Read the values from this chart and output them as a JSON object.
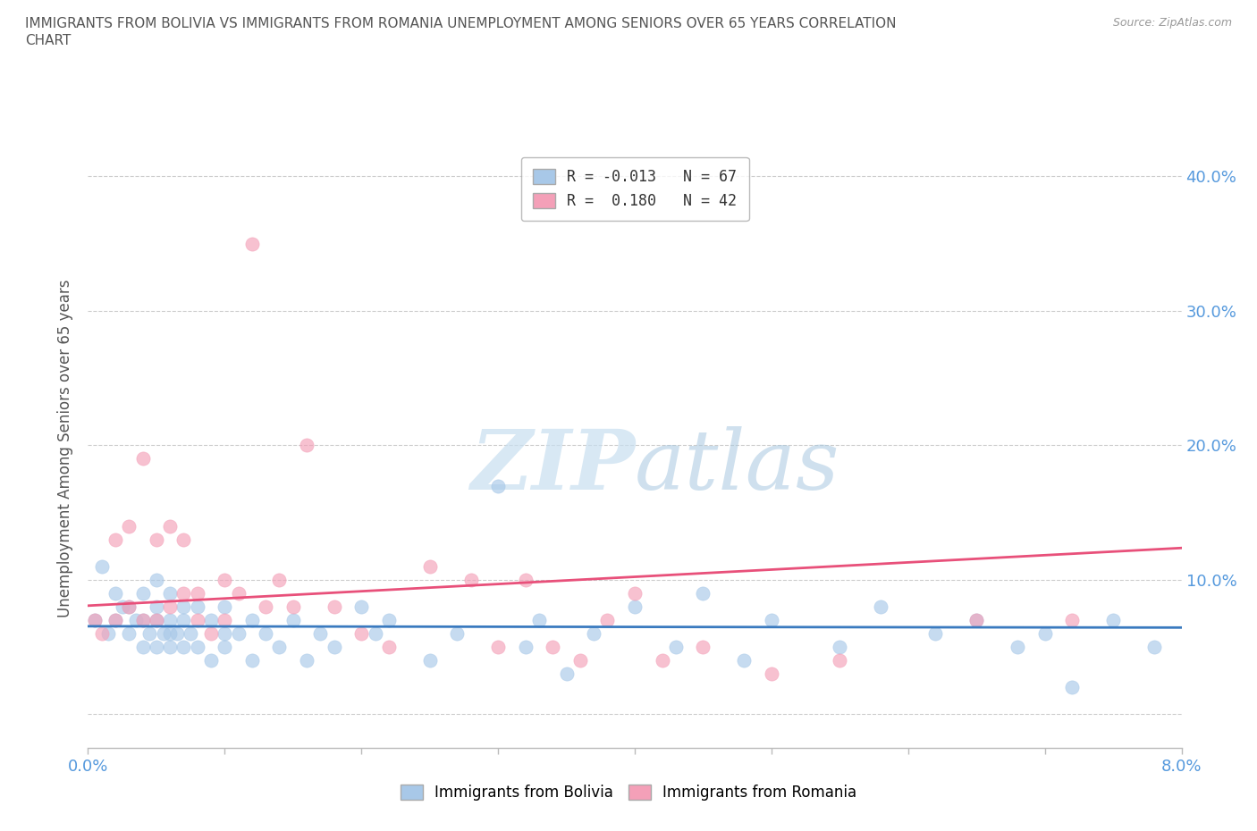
{
  "title": "IMMIGRANTS FROM BOLIVIA VS IMMIGRANTS FROM ROMANIA UNEMPLOYMENT AMONG SENIORS OVER 65 YEARS CORRELATION\nCHART",
  "source_text": "Source: ZipAtlas.com",
  "ylabel": "Unemployment Among Seniors over 65 years",
  "watermark_zip": "ZIP",
  "watermark_atlas": "atlas",
  "bolivia_R": -0.013,
  "bolivia_N": 67,
  "romania_R": 0.18,
  "romania_N": 42,
  "bolivia_color": "#a8c8e8",
  "romania_color": "#f4a0b8",
  "bolivia_trend_color": "#3a7abf",
  "romania_trend_color": "#e8507a",
  "xlim": [
    0.0,
    0.08
  ],
  "ylim": [
    -0.025,
    0.42
  ],
  "yticks": [
    0.0,
    0.1,
    0.2,
    0.3,
    0.4
  ],
  "ytick_labels": [
    "",
    "10.0%",
    "20.0%",
    "30.0%",
    "40.0%"
  ],
  "grid_color": "#cccccc",
  "background_color": "#ffffff",
  "title_color": "#555555",
  "bolivia_x": [
    0.0005,
    0.001,
    0.0015,
    0.002,
    0.002,
    0.0025,
    0.003,
    0.003,
    0.0035,
    0.004,
    0.004,
    0.004,
    0.0045,
    0.005,
    0.005,
    0.005,
    0.005,
    0.0055,
    0.006,
    0.006,
    0.006,
    0.006,
    0.0065,
    0.007,
    0.007,
    0.007,
    0.0075,
    0.008,
    0.008,
    0.009,
    0.009,
    0.01,
    0.01,
    0.01,
    0.011,
    0.012,
    0.012,
    0.013,
    0.014,
    0.015,
    0.016,
    0.017,
    0.018,
    0.02,
    0.021,
    0.022,
    0.025,
    0.027,
    0.03,
    0.032,
    0.033,
    0.035,
    0.037,
    0.04,
    0.043,
    0.045,
    0.048,
    0.05,
    0.055,
    0.058,
    0.062,
    0.065,
    0.068,
    0.07,
    0.072,
    0.075,
    0.078
  ],
  "bolivia_y": [
    0.07,
    0.11,
    0.06,
    0.07,
    0.09,
    0.08,
    0.06,
    0.08,
    0.07,
    0.05,
    0.07,
    0.09,
    0.06,
    0.05,
    0.07,
    0.08,
    0.1,
    0.06,
    0.05,
    0.06,
    0.07,
    0.09,
    0.06,
    0.05,
    0.07,
    0.08,
    0.06,
    0.05,
    0.08,
    0.04,
    0.07,
    0.05,
    0.06,
    0.08,
    0.06,
    0.04,
    0.07,
    0.06,
    0.05,
    0.07,
    0.04,
    0.06,
    0.05,
    0.08,
    0.06,
    0.07,
    0.04,
    0.06,
    0.17,
    0.05,
    0.07,
    0.03,
    0.06,
    0.08,
    0.05,
    0.09,
    0.04,
    0.07,
    0.05,
    0.08,
    0.06,
    0.07,
    0.05,
    0.06,
    0.02,
    0.07,
    0.05
  ],
  "romania_x": [
    0.0005,
    0.001,
    0.002,
    0.002,
    0.003,
    0.003,
    0.004,
    0.004,
    0.005,
    0.005,
    0.006,
    0.006,
    0.007,
    0.007,
    0.008,
    0.008,
    0.009,
    0.01,
    0.01,
    0.011,
    0.012,
    0.013,
    0.014,
    0.015,
    0.016,
    0.018,
    0.02,
    0.022,
    0.025,
    0.028,
    0.03,
    0.032,
    0.034,
    0.036,
    0.038,
    0.04,
    0.042,
    0.045,
    0.05,
    0.055,
    0.065,
    0.072
  ],
  "romania_y": [
    0.07,
    0.06,
    0.13,
    0.07,
    0.08,
    0.14,
    0.07,
    0.19,
    0.07,
    0.13,
    0.08,
    0.14,
    0.09,
    0.13,
    0.07,
    0.09,
    0.06,
    0.07,
    0.1,
    0.09,
    0.35,
    0.08,
    0.1,
    0.08,
    0.2,
    0.08,
    0.06,
    0.05,
    0.11,
    0.1,
    0.05,
    0.1,
    0.05,
    0.04,
    0.07,
    0.09,
    0.04,
    0.05,
    0.03,
    0.04,
    0.07,
    0.07
  ]
}
